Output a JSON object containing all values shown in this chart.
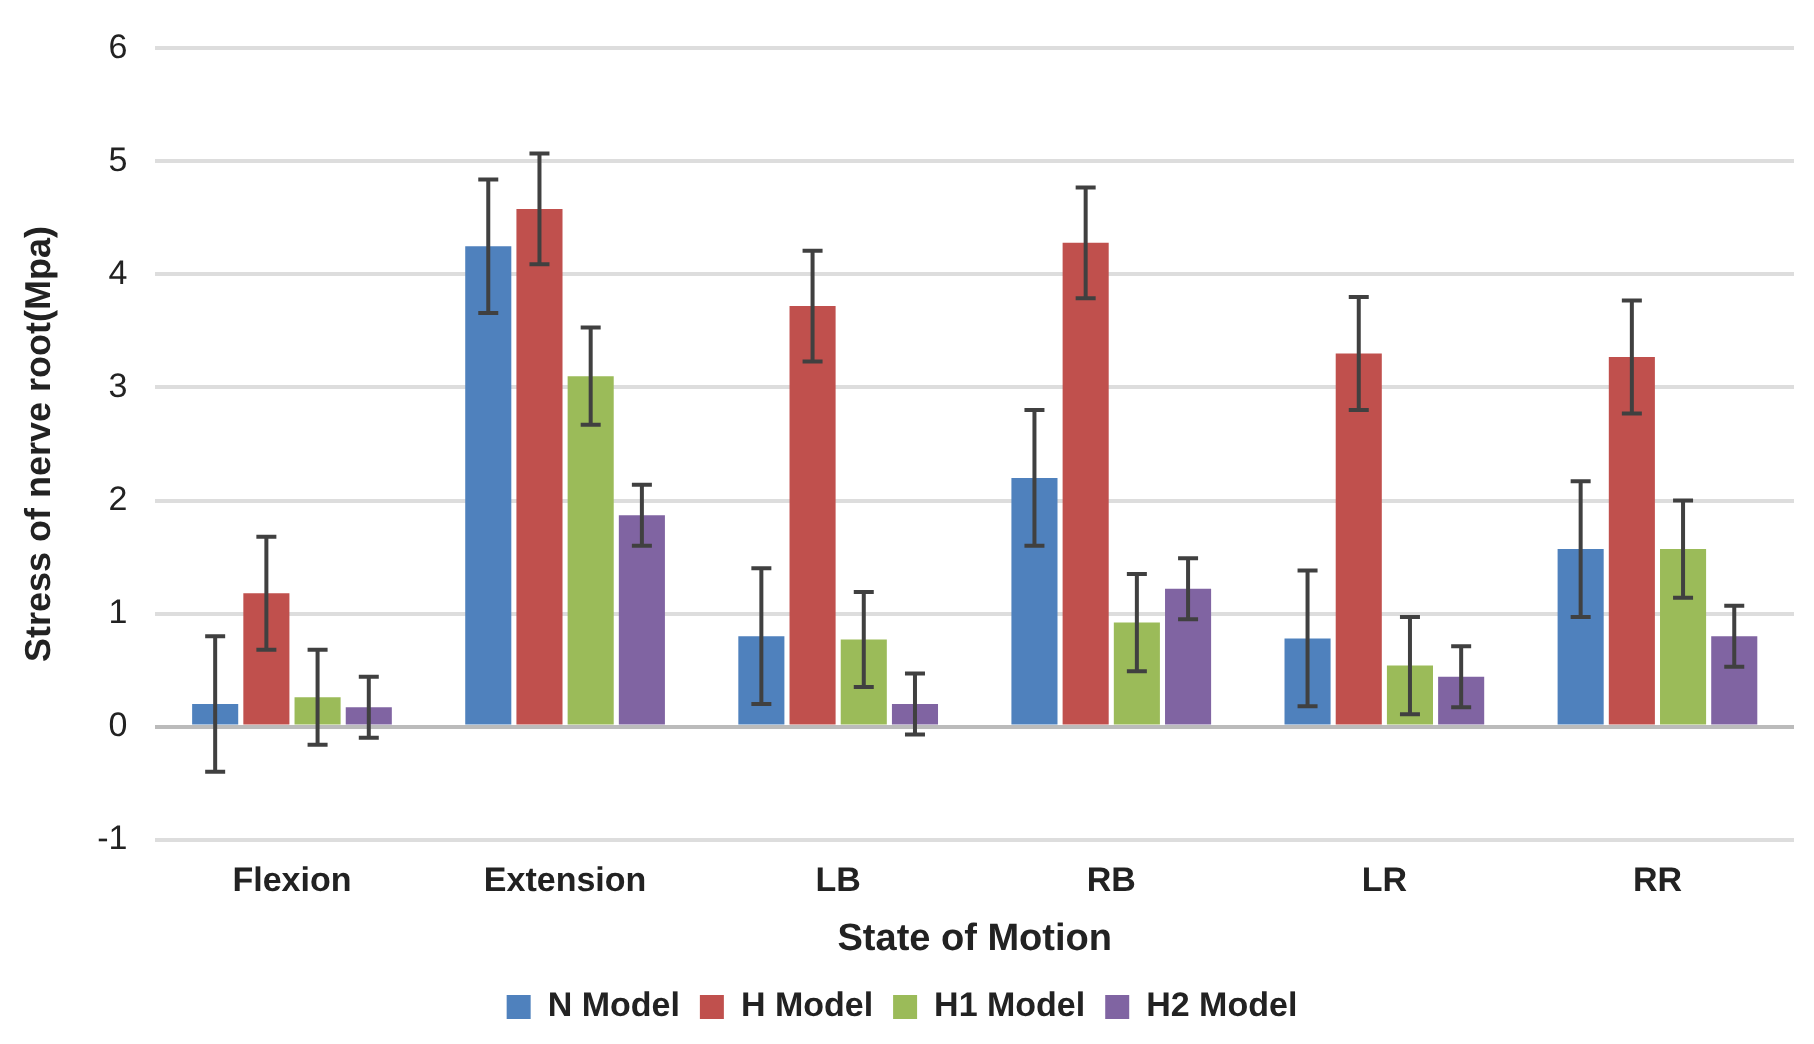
{
  "chart_data": {
    "type": "bar",
    "xlabel": "State of Motion",
    "ylabel": "Stress of nerve root(Mpa)",
    "categories": [
      "Flexion",
      "Extension",
      "LB",
      "RB",
      "LR",
      "RR"
    ],
    "series": [
      {
        "name": "N Model",
        "color": "#4f81bd",
        "values": [
          0.2,
          4.25,
          0.8,
          2.2,
          0.78,
          1.57
        ],
        "errors": [
          0.6,
          0.59,
          0.6,
          0.6,
          0.6,
          0.6
        ]
      },
      {
        "name": "H Model",
        "color": "#c0504d",
        "values": [
          1.18,
          4.58,
          3.72,
          4.28,
          3.3,
          3.27
        ],
        "errors": [
          0.5,
          0.49,
          0.49,
          0.49,
          0.5,
          0.5
        ]
      },
      {
        "name": "H1 Model",
        "color": "#9bbb59",
        "values": [
          0.26,
          3.1,
          0.77,
          0.92,
          0.54,
          1.57
        ],
        "errors": [
          0.42,
          0.43,
          0.42,
          0.43,
          0.43,
          0.43
        ]
      },
      {
        "name": "H2 Model",
        "color": "#8064a2",
        "values": [
          0.17,
          1.87,
          0.2,
          1.22,
          0.44,
          0.8
        ],
        "errors": [
          0.27,
          0.27,
          0.27,
          0.27,
          0.27,
          0.27
        ]
      }
    ],
    "ylim": [
      -1,
      6
    ],
    "yticks": [
      -1,
      0,
      1,
      2,
      3,
      4,
      5,
      6
    ],
    "grid": "y",
    "legend": "bottom"
  }
}
